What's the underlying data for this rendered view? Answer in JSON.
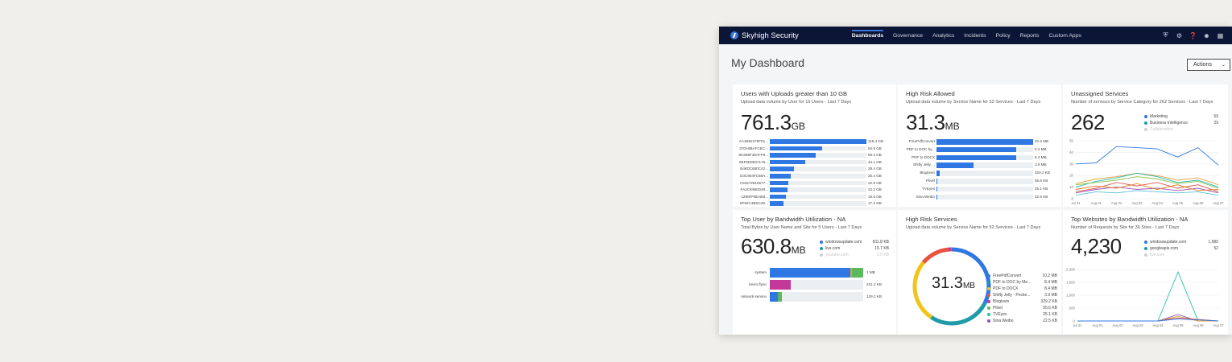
{
  "brand": {
    "name": "Skyhigh Security"
  },
  "nav": {
    "items": [
      "Dashboards",
      "Governance",
      "Analytics",
      "Incidents",
      "Policy",
      "Reports",
      "Custom Apps"
    ],
    "active": "Dashboards",
    "icons": [
      "shield-icon",
      "gear-icon",
      "help-icon",
      "user-icon",
      "apps-grid-icon"
    ]
  },
  "page": {
    "title": "My Dashboard",
    "actions_label": "Actions"
  },
  "colors": {
    "nav_bg": "#0b1536",
    "bar": "#2f77e3",
    "accent": "#3a74d8"
  },
  "cards": {
    "uploads": {
      "title": "Users with Uploads greater than 10 GB",
      "subtitle": "Upload data volume by User for 16 Users - Last 7 Days",
      "big_value": "761.3",
      "big_unit": "GB",
      "bars": [
        {
          "label": "AA1B92275F01...",
          "value": 119.4,
          "display": "119.4 GB"
        },
        {
          "label": "370A9BAFCEC...",
          "value": 64.8,
          "display": "64.8 GB"
        },
        {
          "label": "8C698F36AFF9...",
          "value": 56.4,
          "display": "56.4 GB"
        },
        {
          "label": "6EF6D8847176...",
          "value": 44.1,
          "display": "44.1 GB"
        },
        {
          "label": "B46DC650C42...",
          "value": 29.4,
          "display": "29.4 GB"
        },
        {
          "label": "D3C904FC58A...",
          "value": 25.4,
          "display": "25.4 GB"
        },
        {
          "label": "C91672815677...",
          "value": 22.8,
          "display": "22.8 GB"
        },
        {
          "label": "FA2CE950D49...",
          "value": 22.2,
          "display": "22.2 GB"
        },
        {
          "label": "1290FFBD468...",
          "value": 19.5,
          "display": "19.5 GB"
        },
        {
          "label": "8F94C4B5C2D...",
          "value": 17.2,
          "display": "17.2 GB"
        }
      ]
    },
    "high_risk_allowed": {
      "title": "High Risk Allowed",
      "subtitle": "Upload data volume by Service Name for 52 Services - Last 7 Days",
      "big_value": "31.3",
      "big_unit": "MB",
      "bars": [
        {
          "label": "FreePdfConvert",
          "value": 10.2,
          "display": "10.2 MB"
        },
        {
          "label": "PDF to DOC by...",
          "value": 8.4,
          "display": "8.4 MB"
        },
        {
          "label": "PDF to DOCX",
          "value": 8.4,
          "display": "8.4 MB"
        },
        {
          "label": "Shifty Jelly ...",
          "value": 3.9,
          "display": "3.9 MB"
        },
        {
          "label": "Bloglovin",
          "value": 0.329,
          "display": "329.2 KB"
        },
        {
          "label": "Plivel",
          "value": 0.0556,
          "display": "55.6 KB"
        },
        {
          "label": "TVEyes",
          "value": 0.0251,
          "display": "25.1 KB"
        },
        {
          "label": "Sina Weibo",
          "value": 0.0225,
          "display": "22.5 KB"
        }
      ]
    },
    "unassigned": {
      "title": "Unassigned Services",
      "subtitle": "Number of services by Service Category for 262 Services - Last 7 Days",
      "big_value": "262",
      "legend": [
        {
          "name": "Marketing",
          "value": "59",
          "color": "#2f77e3"
        },
        {
          "name": "Business Intelligence",
          "value": "29",
          "color": "#1f9aa8"
        },
        {
          "name": "Collaboration",
          "value": "",
          "color": "#cfcfcf",
          "muted": true
        }
      ],
      "chart_data": {
        "type": "line",
        "x": [
          "Jul 31",
          "Aug 01",
          "Aug 02",
          "Aug 03",
          "Aug 04",
          "Aug 05",
          "Aug 06",
          "Aug 07"
        ],
        "yticks": [
          "0",
          "10",
          "20",
          "30",
          "40",
          "50"
        ],
        "ylim": [
          0,
          50
        ],
        "series": [
          {
            "color": "#2f77e3",
            "values": [
              30,
              31,
              45,
              44,
              43,
              36,
              44,
              29
            ]
          },
          {
            "color": "#e3a23a",
            "values": [
              13,
              17,
              19,
              22,
              20,
              16,
              18,
              12
            ]
          },
          {
            "color": "#27b5a8",
            "values": [
              10,
              15,
              18,
              22,
              19,
              14,
              16,
              10
            ]
          },
          {
            "color": "#8bc34a",
            "values": [
              12,
              14,
              16,
              19,
              17,
              13,
              15,
              9
            ]
          },
          {
            "color": "#d9534f",
            "values": [
              6,
              9,
              14,
              11,
              14,
              9,
              12,
              6
            ]
          },
          {
            "color": "#9b59b6",
            "values": [
              5,
              8,
              10,
              8,
              9,
              7,
              9,
              5
            ]
          },
          {
            "color": "#e67e22",
            "values": [
              8,
              11,
              9,
              13,
              8,
              12,
              7,
              8
            ]
          },
          {
            "color": "#5bc0de",
            "values": [
              3,
              6,
              5,
              7,
              6,
              5,
              6,
              3
            ]
          }
        ]
      }
    },
    "top_user": {
      "title": "Top User by Bandwidth Utilization - NA",
      "subtitle": "Total Bytes by User Name and Site for 5 Users - Last 7 Days",
      "big_value": "630.8",
      "big_unit": "MB",
      "legend": [
        {
          "name": "windowsupdate.com",
          "value": "811.8 KB",
          "color": "#2f77e3"
        },
        {
          "name": "live.com",
          "value": "15.7 KB",
          "color": "#1f9aa8"
        },
        {
          "name": "youtube.com",
          "value": "2.5 KB",
          "color": "#cfcfcf",
          "muted": true
        }
      ],
      "bars": [
        {
          "label": "system",
          "display": "1 MB",
          "segments": [
            {
              "value": 0.86,
              "color": "#2f77e3"
            },
            {
              "value": 0.02,
              "color": "#e3a23a"
            },
            {
              "value": 0.12,
              "color": "#5cb85c"
            }
          ]
        },
        {
          "label": "kevin flynn",
          "display": "231.2 KB",
          "segments": [
            {
              "value": 0.22,
              "color": "#c2399a"
            }
          ]
        },
        {
          "label": "network service",
          "display": "129.2 KB",
          "segments": [
            {
              "value": 0.09,
              "color": "#2f77e3"
            },
            {
              "value": 0.04,
              "color": "#5cb85c"
            }
          ]
        }
      ]
    },
    "high_risk_services": {
      "title": "High Risk Services",
      "subtitle": "Upload data volume by Service Name for 52 Services - Last 7 Days",
      "center_value": "31.3",
      "center_unit": "MB",
      "legend": [
        {
          "name": "FreePdfConvert",
          "value": "10.2 MB",
          "color": "#2f77e3"
        },
        {
          "name": "PDF to DOC by Me...",
          "value": "8.4 MB",
          "color": "#1f9aa8"
        },
        {
          "name": "PDF to DOCX",
          "value": "8.4 MB",
          "color": "#f0c419"
        },
        {
          "name": "Shifty Jelly - Pocke...",
          "value": "3.9 MB",
          "color": "#e8533f"
        },
        {
          "name": "Bloglovin",
          "value": "329.2 KB",
          "color": "#c2399a"
        },
        {
          "name": "Plivel",
          "value": "55.6 KB",
          "color": "#5cb85c"
        },
        {
          "name": "TVEyes",
          "value": "25.1 KB",
          "color": "#27c2a3"
        },
        {
          "name": "Sina Weibo",
          "value": "22.5 KB",
          "color": "#7e57c2"
        }
      ],
      "chart_data": {
        "type": "pie",
        "values": [
          10.2,
          8.4,
          8.4,
          3.9,
          0.3292,
          0.0556,
          0.0251,
          0.0225
        ]
      }
    },
    "top_websites": {
      "title": "Top Websites by Bandwidth Utilization - NA",
      "subtitle": "Number of Requests by Site for 36 Sites - Last 7 Days",
      "big_value": "4,230",
      "legend": [
        {
          "name": "windowsupdate.com",
          "value": "1,580",
          "color": "#2f77e3"
        },
        {
          "name": "googleapis.com",
          "value": "52",
          "color": "#1f9aa8"
        },
        {
          "name": "live.com",
          "value": "",
          "color": "#cfcfcf",
          "muted": true
        }
      ],
      "chart_data": {
        "type": "line",
        "x": [
          "Jul 31",
          "Aug 01",
          "Aug 02",
          "Aug 03",
          "Aug 04",
          "Aug 05",
          "Aug 06",
          "Aug 07"
        ],
        "yticks": [
          "0",
          "500",
          "1,000",
          "1,500",
          "2,000"
        ],
        "ylim": [
          0,
          2000
        ],
        "series": [
          {
            "color": "#27c2a3",
            "values": [
              0,
              0,
              0,
              0,
              0,
              1900,
              0,
              0
            ]
          },
          {
            "color": "#7e57c2",
            "values": [
              0,
              0,
              0,
              0,
              0,
              250,
              0,
              0
            ]
          },
          {
            "color": "#e3a23a",
            "values": [
              0,
              0,
              0,
              0,
              0,
              180,
              0,
              0
            ]
          },
          {
            "color": "#d9534f",
            "values": [
              0,
              0,
              0,
              0,
              0,
              120,
              60,
              0
            ]
          },
          {
            "color": "#2f77e3",
            "values": [
              0,
              0,
              0,
              0,
              0,
              80,
              40,
              0
            ]
          }
        ]
      }
    }
  }
}
